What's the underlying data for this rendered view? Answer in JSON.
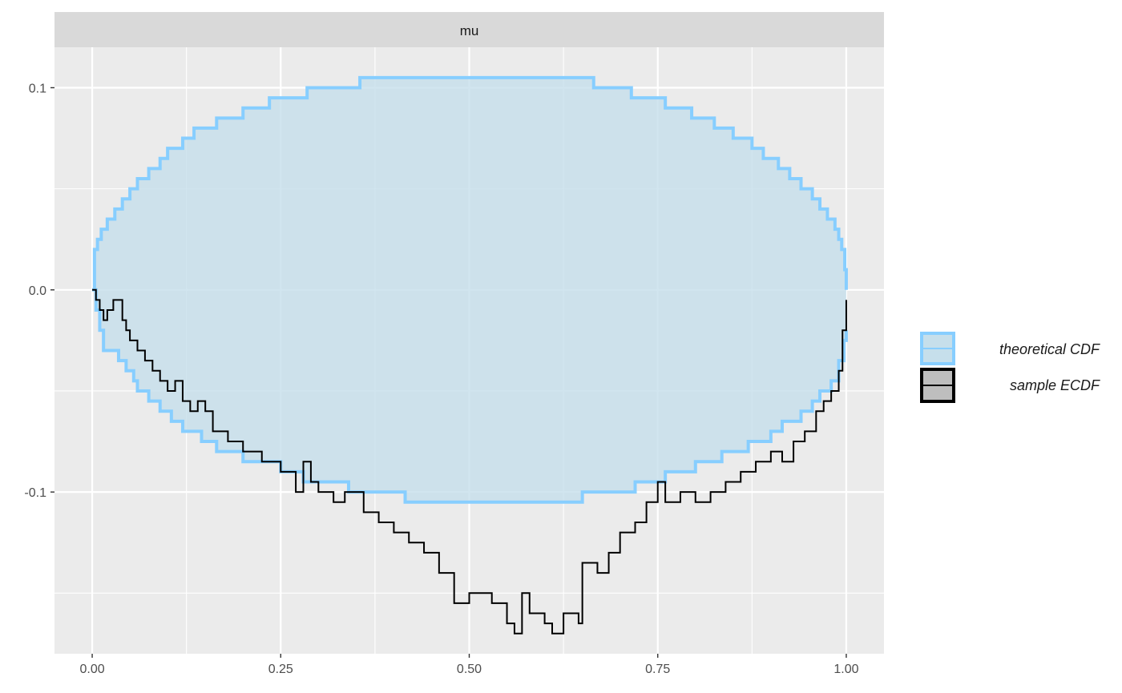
{
  "chart_data": {
    "type": "line",
    "facet_label": "mu",
    "title": "",
    "xlabel": "",
    "ylabel": "",
    "xlim": [
      -0.05,
      1.05
    ],
    "ylim": [
      -0.18,
      0.12
    ],
    "x_ticks": [
      0.0,
      0.25,
      0.5,
      0.75,
      1.0
    ],
    "x_tick_labels": [
      "0.00",
      "0.25",
      "0.50",
      "0.75",
      "1.00"
    ],
    "y_ticks": [
      -0.1,
      0.0,
      0.1
    ],
    "y_tick_labels": [
      "-0.1",
      "0.0",
      "0.1"
    ],
    "grid": true,
    "legend_position": "right",
    "legend": [
      {
        "name": "theoretical CDF",
        "fill": "#c6dfeb",
        "stroke": "#87ceff"
      },
      {
        "name": "sample ECDF",
        "fill": "#bebebe",
        "stroke": "#000000"
      }
    ],
    "band_upper": [
      [
        0.0,
        0.0
      ],
      [
        0.003,
        0.02
      ],
      [
        0.007,
        0.025
      ],
      [
        0.012,
        0.03
      ],
      [
        0.02,
        0.035
      ],
      [
        0.03,
        0.04
      ],
      [
        0.04,
        0.045
      ],
      [
        0.05,
        0.05
      ],
      [
        0.06,
        0.055
      ],
      [
        0.075,
        0.06
      ],
      [
        0.09,
        0.065
      ],
      [
        0.1,
        0.07
      ],
      [
        0.12,
        0.075
      ],
      [
        0.135,
        0.08
      ],
      [
        0.165,
        0.085
      ],
      [
        0.2,
        0.09
      ],
      [
        0.235,
        0.095
      ],
      [
        0.285,
        0.1
      ],
      [
        0.355,
        0.105
      ],
      [
        0.59,
        0.105
      ],
      [
        0.665,
        0.1
      ],
      [
        0.715,
        0.095
      ],
      [
        0.76,
        0.09
      ],
      [
        0.795,
        0.085
      ],
      [
        0.825,
        0.08
      ],
      [
        0.85,
        0.075
      ],
      [
        0.875,
        0.07
      ],
      [
        0.89,
        0.065
      ],
      [
        0.91,
        0.06
      ],
      [
        0.925,
        0.055
      ],
      [
        0.94,
        0.05
      ],
      [
        0.955,
        0.045
      ],
      [
        0.965,
        0.04
      ],
      [
        0.975,
        0.035
      ],
      [
        0.985,
        0.03
      ],
      [
        0.99,
        0.025
      ],
      [
        0.994,
        0.02
      ],
      [
        0.998,
        0.01
      ],
      [
        1.0,
        0.0
      ]
    ],
    "band_lower": [
      [
        0.0,
        0.0
      ],
      [
        0.005,
        -0.01
      ],
      [
        0.01,
        -0.02
      ],
      [
        0.015,
        -0.03
      ],
      [
        0.025,
        -0.03
      ],
      [
        0.035,
        -0.035
      ],
      [
        0.045,
        -0.04
      ],
      [
        0.055,
        -0.045
      ],
      [
        0.06,
        -0.05
      ],
      [
        0.075,
        -0.055
      ],
      [
        0.09,
        -0.06
      ],
      [
        0.105,
        -0.065
      ],
      [
        0.12,
        -0.07
      ],
      [
        0.145,
        -0.075
      ],
      [
        0.165,
        -0.08
      ],
      [
        0.2,
        -0.085
      ],
      [
        0.25,
        -0.09
      ],
      [
        0.28,
        -0.095
      ],
      [
        0.34,
        -0.1
      ],
      [
        0.415,
        -0.105
      ],
      [
        0.65,
        -0.105
      ],
      [
        0.65,
        -0.1
      ],
      [
        0.72,
        -0.095
      ],
      [
        0.76,
        -0.09
      ],
      [
        0.8,
        -0.085
      ],
      [
        0.835,
        -0.08
      ],
      [
        0.87,
        -0.075
      ],
      [
        0.9,
        -0.07
      ],
      [
        0.915,
        -0.065
      ],
      [
        0.94,
        -0.06
      ],
      [
        0.955,
        -0.055
      ],
      [
        0.965,
        -0.05
      ],
      [
        0.98,
        -0.045
      ],
      [
        0.99,
        -0.035
      ],
      [
        0.997,
        -0.025
      ],
      [
        1.0,
        -0.02
      ]
    ],
    "sample_ecdf": [
      [
        0.0,
        0.0
      ],
      [
        0.005,
        -0.005
      ],
      [
        0.01,
        -0.01
      ],
      [
        0.015,
        -0.015
      ],
      [
        0.02,
        -0.01
      ],
      [
        0.028,
        -0.005
      ],
      [
        0.034,
        -0.005
      ],
      [
        0.04,
        -0.015
      ],
      [
        0.045,
        -0.02
      ],
      [
        0.05,
        -0.025
      ],
      [
        0.06,
        -0.03
      ],
      [
        0.07,
        -0.035
      ],
      [
        0.08,
        -0.04
      ],
      [
        0.09,
        -0.045
      ],
      [
        0.1,
        -0.05
      ],
      [
        0.11,
        -0.045
      ],
      [
        0.12,
        -0.055
      ],
      [
        0.13,
        -0.06
      ],
      [
        0.14,
        -0.055
      ],
      [
        0.15,
        -0.06
      ],
      [
        0.16,
        -0.07
      ],
      [
        0.18,
        -0.075
      ],
      [
        0.2,
        -0.08
      ],
      [
        0.225,
        -0.085
      ],
      [
        0.25,
        -0.09
      ],
      [
        0.27,
        -0.1
      ],
      [
        0.28,
        -0.085
      ],
      [
        0.29,
        -0.095
      ],
      [
        0.3,
        -0.1
      ],
      [
        0.32,
        -0.105
      ],
      [
        0.335,
        -0.1
      ],
      [
        0.36,
        -0.11
      ],
      [
        0.38,
        -0.115
      ],
      [
        0.4,
        -0.12
      ],
      [
        0.42,
        -0.125
      ],
      [
        0.44,
        -0.13
      ],
      [
        0.46,
        -0.14
      ],
      [
        0.48,
        -0.155
      ],
      [
        0.5,
        -0.15
      ],
      [
        0.53,
        -0.155
      ],
      [
        0.55,
        -0.165
      ],
      [
        0.56,
        -0.17
      ],
      [
        0.57,
        -0.15
      ],
      [
        0.58,
        -0.16
      ],
      [
        0.6,
        -0.165
      ],
      [
        0.61,
        -0.17
      ],
      [
        0.625,
        -0.16
      ],
      [
        0.645,
        -0.165
      ],
      [
        0.65,
        -0.135
      ],
      [
        0.67,
        -0.14
      ],
      [
        0.685,
        -0.13
      ],
      [
        0.7,
        -0.12
      ],
      [
        0.72,
        -0.115
      ],
      [
        0.735,
        -0.105
      ],
      [
        0.75,
        -0.095
      ],
      [
        0.76,
        -0.105
      ],
      [
        0.78,
        -0.1
      ],
      [
        0.8,
        -0.105
      ],
      [
        0.82,
        -0.1
      ],
      [
        0.84,
        -0.095
      ],
      [
        0.86,
        -0.09
      ],
      [
        0.88,
        -0.085
      ],
      [
        0.9,
        -0.08
      ],
      [
        0.915,
        -0.085
      ],
      [
        0.93,
        -0.075
      ],
      [
        0.945,
        -0.07
      ],
      [
        0.96,
        -0.06
      ],
      [
        0.97,
        -0.055
      ],
      [
        0.98,
        -0.05
      ],
      [
        0.99,
        -0.04
      ],
      [
        0.995,
        -0.02
      ],
      [
        1.0,
        -0.005
      ]
    ]
  }
}
